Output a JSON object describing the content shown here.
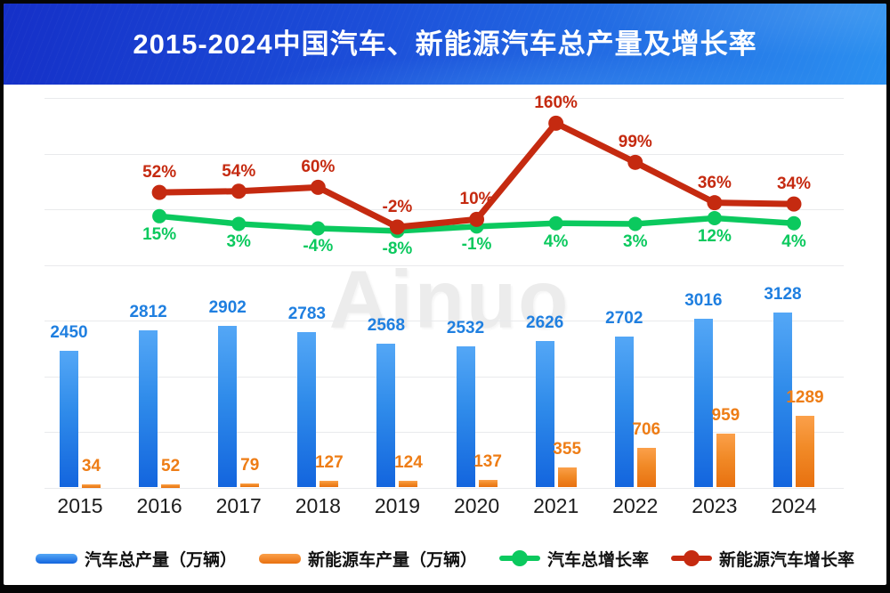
{
  "title": "2015-2024中国汽车、新能源汽车总产量及增长率",
  "watermark": "Ainuo",
  "theme": {
    "banner_gradient_left": "#1530c8",
    "banner_gradient_mid": "#1c4fd9",
    "banner_gradient_right": "#2b90f0",
    "title_color": "#ffffff",
    "gridline_color": "#e9eaec",
    "background": "#ffffff",
    "frame_color": "#050505"
  },
  "chart_data": {
    "type": "bar+line combo",
    "title": "2015-2024中国汽车、新能源汽车总产量及增长率",
    "categories": [
      "2015",
      "2016",
      "2017",
      "2018",
      "2019",
      "2020",
      "2021",
      "2022",
      "2023",
      "2024"
    ],
    "grid": true,
    "legend_position": "bottom",
    "series": [
      {
        "name": "汽车总产量（万辆）",
        "type": "bar",
        "values": [
          2450,
          2812,
          2902,
          2783,
          2568,
          2532,
          2626,
          2702,
          3016,
          3128
        ],
        "color_top": "#54a7f6",
        "color_bottom": "#1365de",
        "label_color": "#1f7fe0",
        "axis": "left",
        "axis_range": [
          0,
          4000
        ]
      },
      {
        "name": "新能源车产量（万辆）",
        "type": "bar",
        "values": [
          34,
          52,
          79,
          127,
          124,
          137,
          355,
          706,
          959,
          1289
        ],
        "color_top": "#fba04a",
        "color_bottom": "#e87110",
        "label_color": "#ee7d16",
        "axis": "left",
        "axis_range": [
          0,
          4000
        ]
      },
      {
        "name": "汽车总增长率",
        "type": "line",
        "unit": "%",
        "values": [
          null,
          15,
          3,
          -4,
          -8,
          -1,
          4,
          3,
          12,
          4
        ],
        "labels": [
          null,
          "15%",
          "3%",
          "-4%",
          "-8%",
          "-1%",
          "4%",
          "3%",
          "12%",
          "4%"
        ],
        "color": "#0bc95e",
        "label_position": "below"
      },
      {
        "name": "新能源汽车增长率",
        "type": "line",
        "unit": "%",
        "values": [
          null,
          52,
          54,
          60,
          -2,
          10,
          160,
          99,
          36,
          34
        ],
        "labels": [
          null,
          "52%",
          "54%",
          "60%",
          "-2%",
          "10%",
          "160%",
          "99%",
          "36%",
          "34%"
        ],
        "color": "#c52a10",
        "label_position": "above"
      }
    ]
  },
  "legend": [
    {
      "label": "汽车总产量（万辆）",
      "marker": "bar",
      "series_index": 0
    },
    {
      "label": "新能源车产量（万辆）",
      "marker": "bar",
      "series_index": 1
    },
    {
      "label": "汽车总增长率",
      "marker": "line",
      "series_index": 2
    },
    {
      "label": "新能源汽车增长率",
      "marker": "line",
      "series_index": 3
    }
  ]
}
